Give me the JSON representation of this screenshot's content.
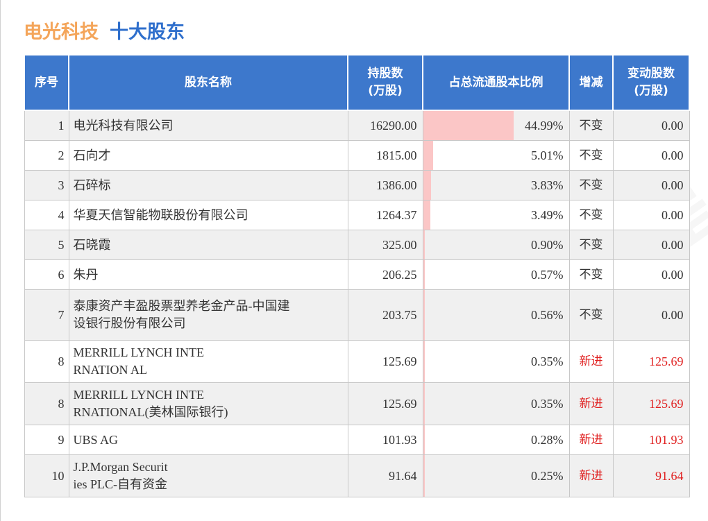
{
  "title": {
    "company": "电光科技",
    "subtitle": "十大股东"
  },
  "table": {
    "headers": {
      "idx": "序号",
      "name": "股东名称",
      "shares_line1": "持股数",
      "shares_line2": "(万股)",
      "pct": "占总流通股本比例",
      "change": "增减",
      "delta_line1": "变动股数",
      "delta_line2": "(万股)"
    },
    "rows": [
      {
        "idx": "1",
        "name_line1": "电光科技有限公司",
        "name_line2": "",
        "shares": "16290.00",
        "pct": "44.99%",
        "pct_value": 44.99,
        "change": "不变",
        "delta": "0.00"
      },
      {
        "idx": "2",
        "name_line1": "石向才",
        "name_line2": "",
        "shares": "1815.00",
        "pct": "5.01%",
        "pct_value": 5.01,
        "change": "不变",
        "delta": "0.00"
      },
      {
        "idx": "3",
        "name_line1": "石碎标",
        "name_line2": "",
        "shares": "1386.00",
        "pct": "3.83%",
        "pct_value": 3.83,
        "change": "不变",
        "delta": "0.00"
      },
      {
        "idx": "4",
        "name_line1": "华夏天信智能物联股份有限公司",
        "name_line2": "",
        "shares": "1264.37",
        "pct": "3.49%",
        "pct_value": 3.49,
        "change": "不变",
        "delta": "0.00"
      },
      {
        "idx": "5",
        "name_line1": "石晓霞",
        "name_line2": "",
        "shares": "325.00",
        "pct": "0.90%",
        "pct_value": 0.9,
        "change": "不变",
        "delta": "0.00"
      },
      {
        "idx": "6",
        "name_line1": "朱丹",
        "name_line2": "",
        "shares": "206.25",
        "pct": "0.57%",
        "pct_value": 0.57,
        "change": "不变",
        "delta": "0.00"
      },
      {
        "idx": "7",
        "name_line1": "泰康资产丰盈股票型养老金产品-中国建",
        "name_line2": "设银行股份有限公司",
        "shares": "203.75",
        "pct": "0.56%",
        "pct_value": 0.56,
        "change": "不变",
        "delta": "0.00"
      },
      {
        "idx": "8",
        "name_line1": "MERRILL LYNCH INTE",
        "name_line2": "RNATION AL",
        "shares": "125.69",
        "pct": "0.35%",
        "pct_value": 0.35,
        "change": "新进",
        "delta": "125.69"
      },
      {
        "idx": "8",
        "name_line1": "MERRILL LYNCH INTE",
        "name_line2": "RNATIONAL(美林国际银行)",
        "shares": "125.69",
        "pct": "0.35%",
        "pct_value": 0.35,
        "change": "新进",
        "delta": "125.69"
      },
      {
        "idx": "9",
        "name_line1": "UBS AG",
        "name_line2": "",
        "shares": "101.93",
        "pct": "0.28%",
        "pct_value": 0.28,
        "change": "新进",
        "delta": "101.93"
      },
      {
        "idx": "10",
        "name_line1": "J.P.Morgan Securit",
        "name_line2": "ies PLC-自有资金",
        "shares": "91.64",
        "pct": "0.25%",
        "pct_value": 0.25,
        "change": "新进",
        "delta": "91.64"
      }
    ]
  },
  "watermark": "证券之星",
  "colors": {
    "title_company": "#f4a55a",
    "title_subtitle": "#2f6fcc",
    "header_bg": "#3d78cc",
    "bar": "#fbc6c6",
    "increase_text": "#e02020"
  }
}
